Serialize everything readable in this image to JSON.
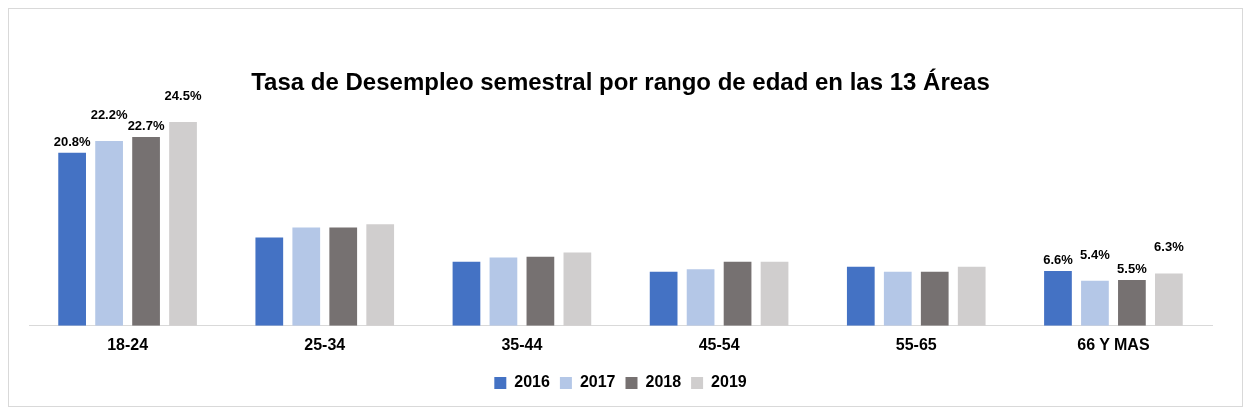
{
  "chart_data": {
    "type": "bar",
    "title": "Tasa de Desempleo semestral por rango de edad en las 13 Áreas",
    "categories": [
      "18-24",
      "25-34",
      "35-44",
      "45-54",
      "55-65",
      "66 Y MAS"
    ],
    "series": [
      {
        "name": "2016",
        "color": "#4472c4",
        "values": [
          20.8,
          10.6,
          7.7,
          6.5,
          7.1,
          6.6
        ],
        "value_labels": [
          "20.8%",
          null,
          null,
          null,
          null,
          "6.6%"
        ]
      },
      {
        "name": "2017",
        "color": "#b4c7e7",
        "values": [
          22.2,
          11.8,
          8.2,
          6.8,
          6.5,
          5.4
        ],
        "value_labels": [
          "22.2%",
          null,
          null,
          null,
          null,
          "5.4%"
        ]
      },
      {
        "name": "2018",
        "color": "#767171",
        "values": [
          22.7,
          11.8,
          8.3,
          7.7,
          6.5,
          5.5
        ],
        "value_labels": [
          "22.7%",
          null,
          null,
          null,
          null,
          "5.5%"
        ]
      },
      {
        "name": "2019",
        "color": "#d0cece",
        "values": [
          24.5,
          12.2,
          8.8,
          7.7,
          7.1,
          6.3
        ],
        "value_labels": [
          "24.5%",
          null,
          null,
          null,
          null,
          "6.3%"
        ]
      }
    ],
    "legend": "bottom",
    "grid": false
  }
}
